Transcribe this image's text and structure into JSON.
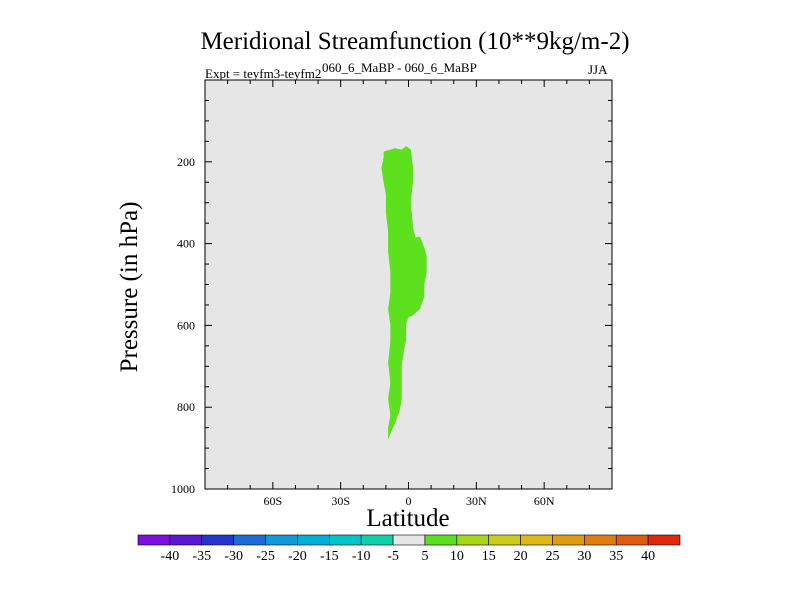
{
  "chart_data": {
    "type": "contour",
    "title": "Meridional Streamfunction (10**9kg/m-2)",
    "subtitle": "060_6_MaBP - 060_6_MaBP",
    "expt_label": "Expt = teyfm3-teyfm2",
    "season": "JJA",
    "xlabel": "Latitude",
    "ylabel": "Pressure (in hPa)",
    "xlim": [
      -90,
      90
    ],
    "ylim": [
      1000,
      0
    ],
    "x_ticks": [
      {
        "value": -60,
        "label": "60S"
      },
      {
        "value": -30,
        "label": "30S"
      },
      {
        "value": 0,
        "label": "0"
      },
      {
        "value": 30,
        "label": "30N"
      },
      {
        "value": 60,
        "label": "60N"
      }
    ],
    "y_ticks": [
      {
        "value": 200,
        "label": "200"
      },
      {
        "value": 400,
        "label": "400"
      },
      {
        "value": 600,
        "label": "600"
      },
      {
        "value": 800,
        "label": "800"
      },
      {
        "value": 1000,
        "label": "1000"
      }
    ],
    "background_color": "#e6e6e6",
    "contour_regions": [
      {
        "level_range": [
          5,
          10
        ],
        "color": "#5de01e",
        "outline": [
          [
            -11,
            175
          ],
          [
            -6,
            167
          ],
          [
            -3,
            170
          ],
          [
            -1,
            162
          ],
          [
            1,
            170
          ],
          [
            2,
            215
          ],
          [
            2,
            250
          ],
          [
            1,
            295
          ],
          [
            2,
            360
          ],
          [
            3,
            385
          ],
          [
            5,
            383
          ],
          [
            6,
            395
          ],
          [
            7,
            410
          ],
          [
            8,
            430
          ],
          [
            8,
            470
          ],
          [
            7,
            500
          ],
          [
            7,
            530
          ],
          [
            5,
            560
          ],
          [
            2,
            575
          ],
          [
            0,
            580
          ],
          [
            -1,
            595
          ],
          [
            -1,
            635
          ],
          [
            -2,
            660
          ],
          [
            -3,
            700
          ],
          [
            -3,
            780
          ],
          [
            -4,
            810
          ],
          [
            -6,
            840
          ],
          [
            -8,
            865
          ],
          [
            -9,
            880
          ],
          [
            -9,
            850
          ],
          [
            -8,
            820
          ],
          [
            -9,
            780
          ],
          [
            -8,
            740
          ],
          [
            -9,
            690
          ],
          [
            -8,
            640
          ],
          [
            -8,
            600
          ],
          [
            -9,
            560
          ],
          [
            -8,
            520
          ],
          [
            -8,
            470
          ],
          [
            -9,
            420
          ],
          [
            -9,
            370
          ],
          [
            -10,
            325
          ],
          [
            -10,
            280
          ],
          [
            -11,
            250
          ],
          [
            -12,
            215
          ],
          [
            -11,
            190
          ]
        ]
      }
    ],
    "colorbar": {
      "labels": [
        "-40",
        "-35",
        "-30",
        "-25",
        "-20",
        "-15",
        "-10",
        "-5",
        "5",
        "10",
        "15",
        "20",
        "25",
        "30",
        "35",
        "40"
      ],
      "colors": [
        "#7f0ee1",
        "#5a18d4",
        "#2436cf",
        "#1e6cd6",
        "#119ad8",
        "#00b0d6",
        "#00c4c8",
        "#10d0a8",
        "#e6e6e6",
        "#5de01e",
        "#a6d81a",
        "#cccd1a",
        "#e0b816",
        "#e09c10",
        "#e07c10",
        "#e05a10",
        "#de2a0a"
      ]
    }
  }
}
